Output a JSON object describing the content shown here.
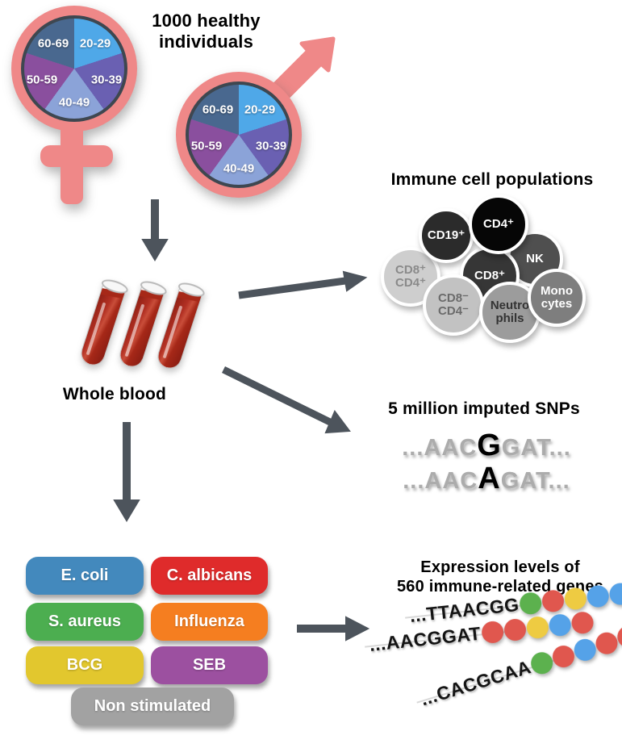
{
  "title": "1000 healthy individuals",
  "demographics": {
    "symbol_color": "#EF8888",
    "pie_outline_color": "#3E4750",
    "age_groups": [
      {
        "label": "20-29",
        "color": "#4FA8E8"
      },
      {
        "label": "30-39",
        "color": "#6A60B2"
      },
      {
        "label": "40-49",
        "color": "#8BA3D8"
      },
      {
        "label": "50-59",
        "color": "#8A4F9E"
      },
      {
        "label": "60-69",
        "color": "#49688F"
      }
    ]
  },
  "whole_blood": {
    "label": "Whole blood",
    "blood_color": "#A62818"
  },
  "immune_cells": {
    "heading": "Immune cell populations",
    "cells": [
      {
        "label": "CD8⁺\nCD4⁺",
        "bg": "#CECECE",
        "text": "#8A8A8A"
      },
      {
        "label": "CD19⁺",
        "bg": "#2B2B2B",
        "text": "#FFFFFF"
      },
      {
        "label": "NK",
        "bg": "#4F4F4F",
        "text": "#FFFFFF"
      },
      {
        "label": "CD8⁺",
        "bg": "#363636",
        "text": "#FFFFFF"
      },
      {
        "label": "CD8⁻\nCD4⁻",
        "bg": "#C2C2C2",
        "text": "#6B6B6B"
      },
      {
        "label": "Neutro\nphils",
        "bg": "#9C9C9C",
        "text": "#333333"
      },
      {
        "label": "Mono\ncytes",
        "bg": "#7E7E7E",
        "text": "#FFFFFF"
      },
      {
        "label": "CD4⁺",
        "bg": "#060606",
        "text": "#FFFFFF"
      }
    ]
  },
  "snps": {
    "heading": "5 million imputed SNPs",
    "sequences": [
      {
        "prefix": "...AAC",
        "variant": "G",
        "suffix": "GAT..."
      },
      {
        "prefix": "...AAC",
        "variant": "A",
        "suffix": "GAT..."
      }
    ]
  },
  "stimulations": {
    "items": [
      {
        "label": "E. coli",
        "color": "#4389BD"
      },
      {
        "label": "C. albicans",
        "color": "#DF2B2B"
      },
      {
        "label": "S. aureus",
        "color": "#4CAE50"
      },
      {
        "label": "Influenza",
        "color": "#F57E20"
      },
      {
        "label": "BCG",
        "color": "#E2C72E"
      },
      {
        "label": "SEB",
        "color": "#9C50A0"
      },
      {
        "label": "Non stimulated",
        "color": "#A2A2A2"
      }
    ]
  },
  "expression": {
    "heading_line1": "Expression levels of",
    "heading_line2": "560 immune-related genes",
    "dot_colors": {
      "green": "#5CB14E",
      "red": "#E0574E",
      "yellow": "#EECB42",
      "blue": "#55A2E8"
    },
    "sequences": [
      {
        "text": "...TTAACGG",
        "dots": [
          "green",
          "red",
          "yellow",
          "blue",
          "blue"
        ]
      },
      {
        "text": "...AACGGAT",
        "dots": [
          "red",
          "red",
          "yellow",
          "blue",
          "red"
        ]
      },
      {
        "text": "...CACGCAA",
        "dots": [
          "green",
          "red",
          "blue",
          "red",
          "red"
        ]
      }
    ]
  },
  "arrow_color": "#4D545C"
}
